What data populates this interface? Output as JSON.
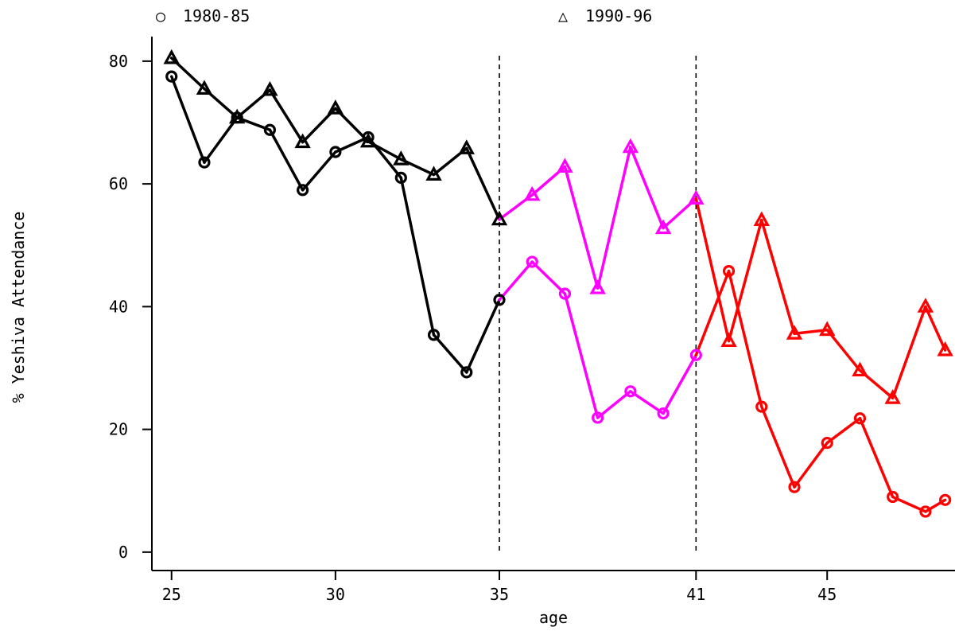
{
  "chart_data": {
    "type": "line",
    "xlabel": "age",
    "ylabel": "% Yeshiva Attendance",
    "xlim": [
      24.4,
      48.9
    ],
    "ylim": [
      -3,
      84
    ],
    "x_ticks": [
      25,
      30,
      35,
      41,
      45
    ],
    "y_ticks": [
      0,
      20,
      40,
      60,
      80
    ],
    "reference_lines_x": [
      35,
      41
    ],
    "legend": {
      "placement": "top",
      "entries": [
        {
          "symbol": "○",
          "label": "1980-85"
        },
        {
          "symbol": "△",
          "label": "1990-96"
        }
      ]
    },
    "segment_colors": [
      {
        "from": 25,
        "to": 35,
        "color": "#000000"
      },
      {
        "from": 35,
        "to": 41,
        "color": "#ff00ff"
      },
      {
        "from": 41,
        "to": 48.6,
        "color": "#ff0000"
      }
    ],
    "series": [
      {
        "name": "1980-85",
        "marker": "circle",
        "points": [
          [
            25,
            77.5
          ],
          [
            26,
            63.5
          ],
          [
            27,
            70.8
          ],
          [
            28,
            68.8
          ],
          [
            29,
            59.0
          ],
          [
            30,
            65.2
          ],
          [
            31,
            67.6
          ],
          [
            32,
            61.0
          ],
          [
            33,
            35.4
          ],
          [
            34,
            29.3
          ],
          [
            35,
            41.1
          ],
          [
            36,
            47.3
          ],
          [
            37,
            42.1
          ],
          [
            38,
            21.9
          ],
          [
            39,
            26.2
          ],
          [
            40,
            22.6
          ],
          [
            41,
            32.1
          ],
          [
            42,
            45.8
          ],
          [
            43,
            23.7
          ],
          [
            44,
            10.6
          ],
          [
            45,
            17.8
          ],
          [
            46,
            21.8
          ],
          [
            47,
            9.0
          ],
          [
            48,
            6.6
          ],
          [
            48.6,
            8.5
          ]
        ]
      },
      {
        "name": "1990-96",
        "marker": "triangle",
        "points": [
          [
            25,
            80.5
          ],
          [
            26,
            75.5
          ],
          [
            27,
            70.8
          ],
          [
            28,
            75.3
          ],
          [
            29,
            66.8
          ],
          [
            30,
            72.3
          ],
          [
            31,
            66.9
          ],
          [
            32,
            64.0
          ],
          [
            33,
            61.5
          ],
          [
            34,
            65.8
          ],
          [
            35,
            54.2
          ],
          [
            36,
            58.2
          ],
          [
            37,
            62.8
          ],
          [
            38,
            43.0
          ],
          [
            39,
            66.0
          ],
          [
            40,
            52.8
          ],
          [
            41,
            57.6
          ],
          [
            42,
            34.4
          ],
          [
            43,
            54.1
          ],
          [
            44,
            35.6
          ],
          [
            45,
            36.2
          ],
          [
            46,
            29.6
          ],
          [
            47,
            25.1
          ],
          [
            48,
            40.0
          ],
          [
            48.6,
            32.9
          ]
        ]
      }
    ]
  }
}
